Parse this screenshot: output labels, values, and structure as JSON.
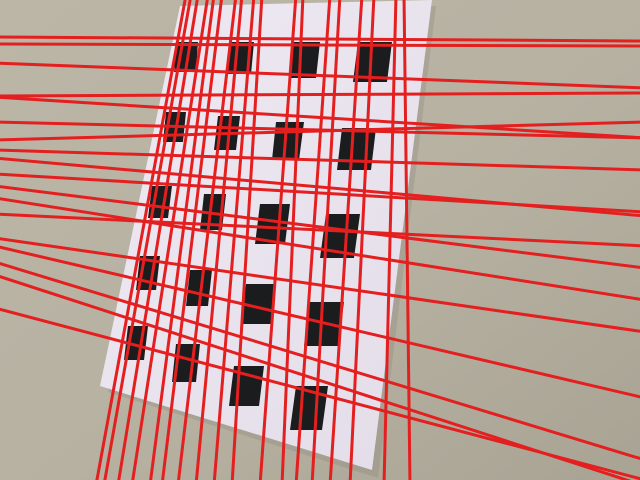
{
  "colors": {
    "wall": "#b9b3a4",
    "wall_shade": "#aaa496",
    "paper": "#ece6f0",
    "square": "#1b1c1d",
    "line": "#e41f1f"
  }
}
